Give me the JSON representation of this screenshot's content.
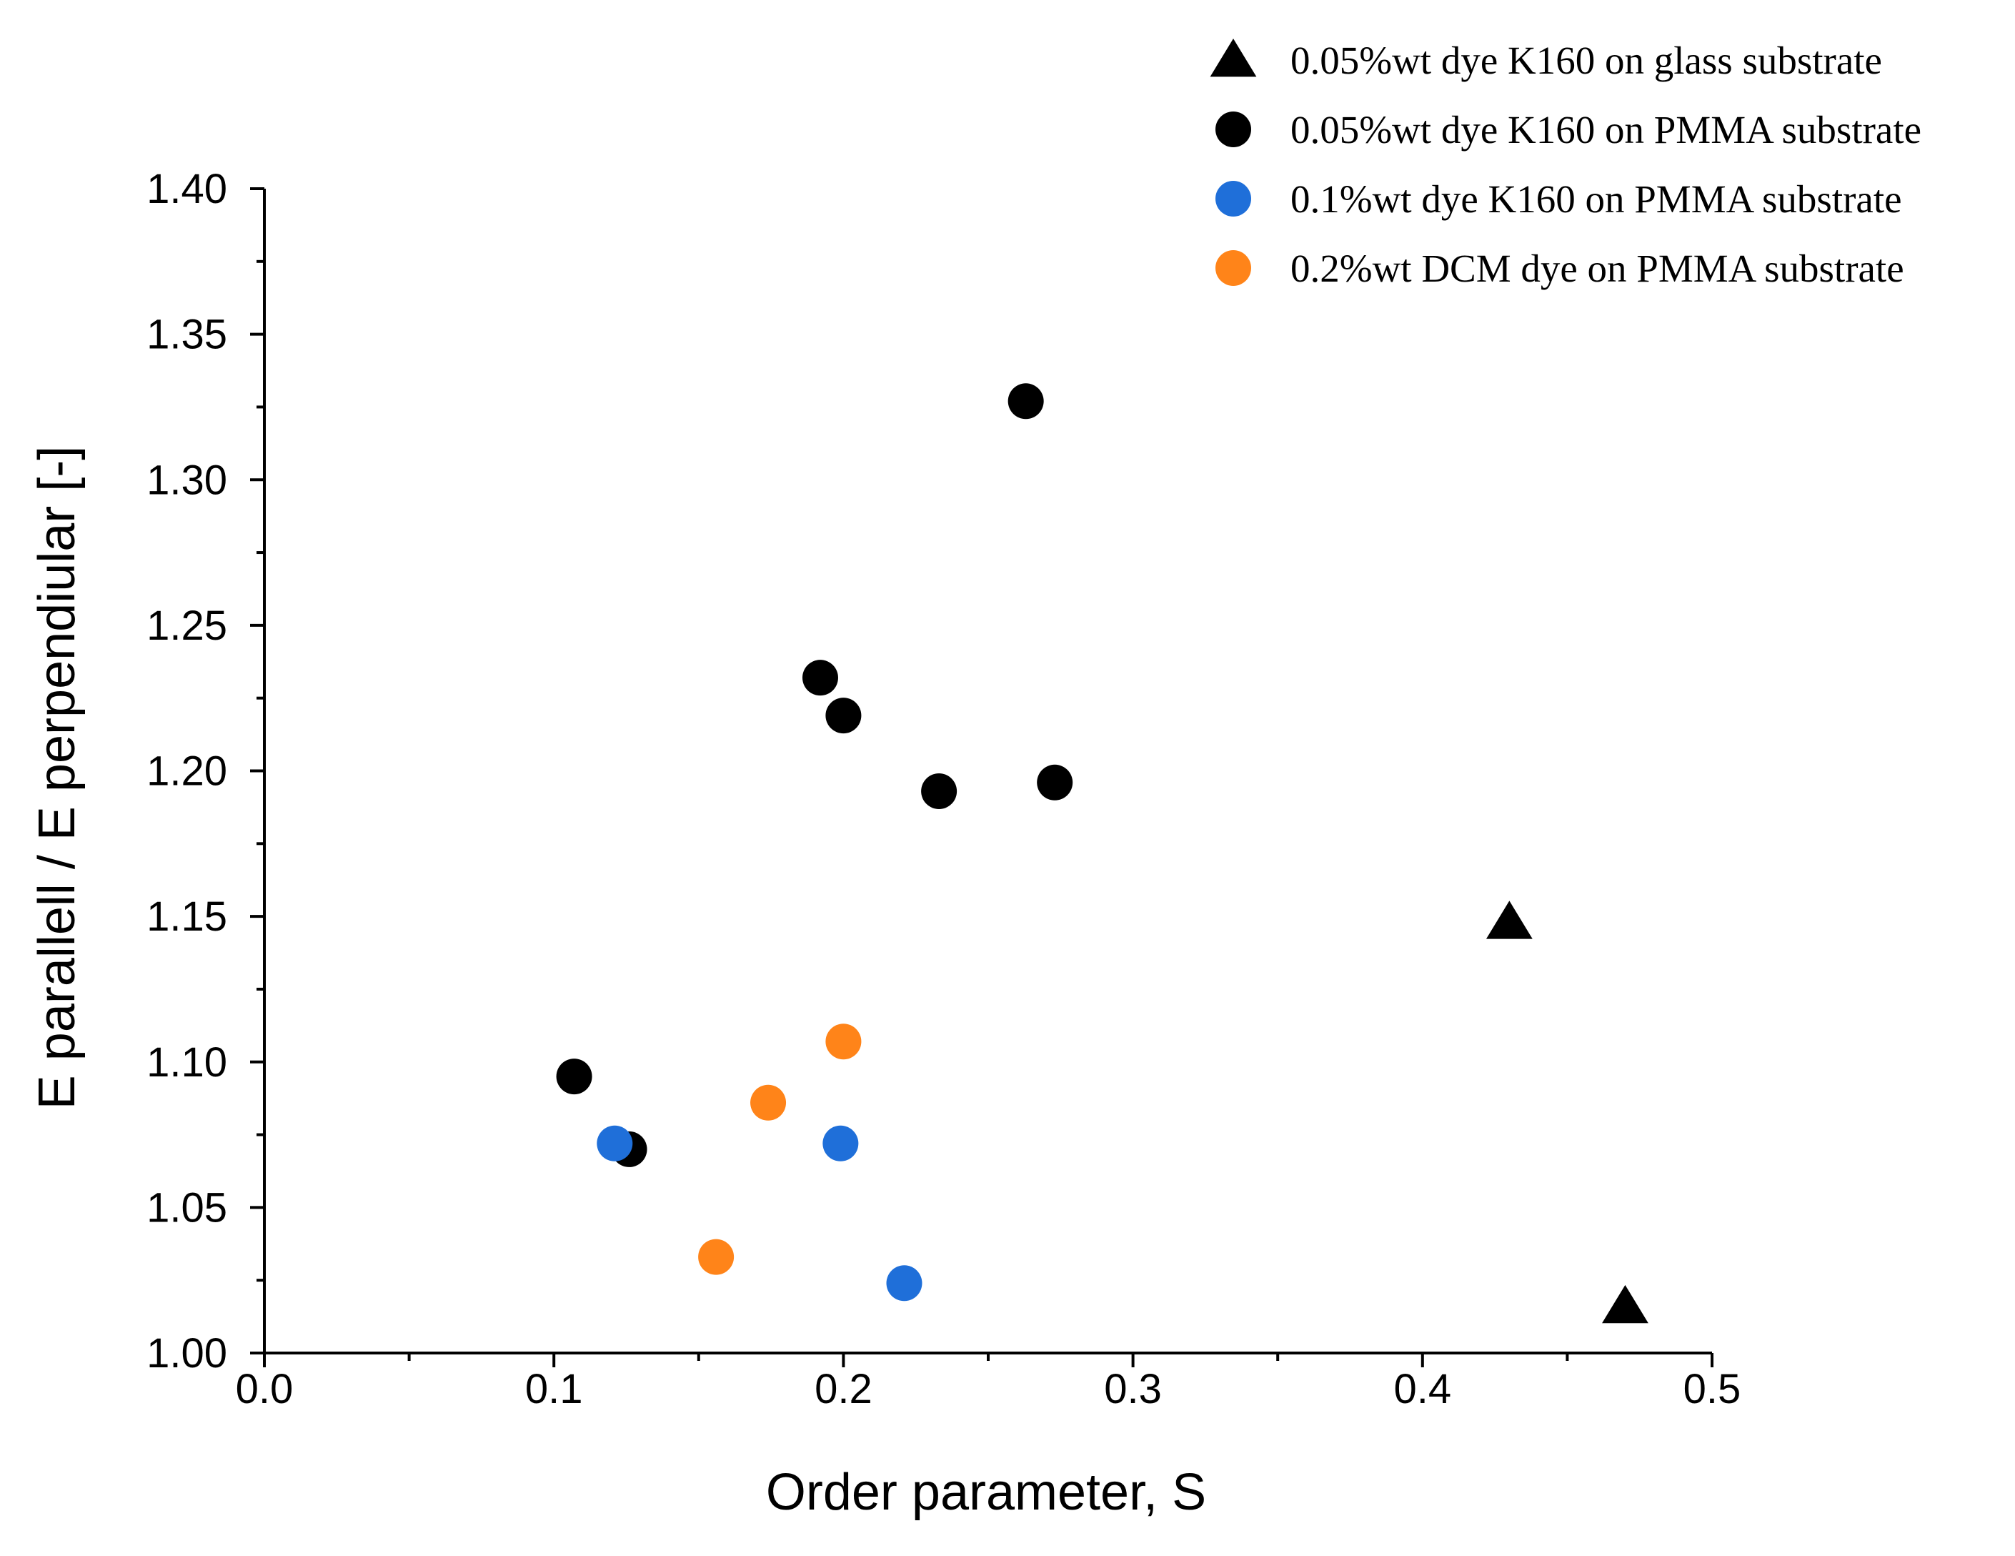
{
  "chart_data": {
    "type": "scatter",
    "title": "",
    "xlabel": "Order parameter, S",
    "ylabel": "E parallell / E perpendiular [-]",
    "xlim": [
      0.0,
      0.5
    ],
    "ylim": [
      1.0,
      1.4
    ],
    "x_ticks": [
      "0.0",
      "0.1",
      "0.2",
      "0.3",
      "0.4",
      "0.5"
    ],
    "y_ticks": [
      "1.00",
      "1.05",
      "1.10",
      "1.15",
      "1.20",
      "1.25",
      "1.30",
      "1.35",
      "1.40"
    ],
    "grid": false,
    "legend_position": "top-right",
    "series": [
      {
        "name": "0.05%wt dye K160 on glass substrate",
        "marker": "triangle",
        "color": "#000000",
        "points": [
          [
            0.43,
            1.148
          ],
          [
            0.47,
            1.016
          ]
        ]
      },
      {
        "name": "0.05%wt dye K160 on PMMA substrate",
        "marker": "circle",
        "color": "#000000",
        "points": [
          [
            0.107,
            1.095
          ],
          [
            0.126,
            1.07
          ],
          [
            0.192,
            1.232
          ],
          [
            0.2,
            1.219
          ],
          [
            0.233,
            1.193
          ],
          [
            0.263,
            1.327
          ],
          [
            0.273,
            1.196
          ]
        ]
      },
      {
        "name": "0.1%wt dye K160 on PMMA substrate",
        "marker": "circle",
        "color": "#1f6fd9",
        "points": [
          [
            0.121,
            1.072
          ],
          [
            0.199,
            1.072
          ],
          [
            0.221,
            1.024
          ]
        ]
      },
      {
        "name": "0.2%wt DCM dye on PMMA substrate",
        "marker": "circle",
        "color": "#ff8419",
        "points": [
          [
            0.156,
            1.033
          ],
          [
            0.174,
            1.086
          ],
          [
            0.2,
            1.107
          ]
        ]
      }
    ]
  }
}
